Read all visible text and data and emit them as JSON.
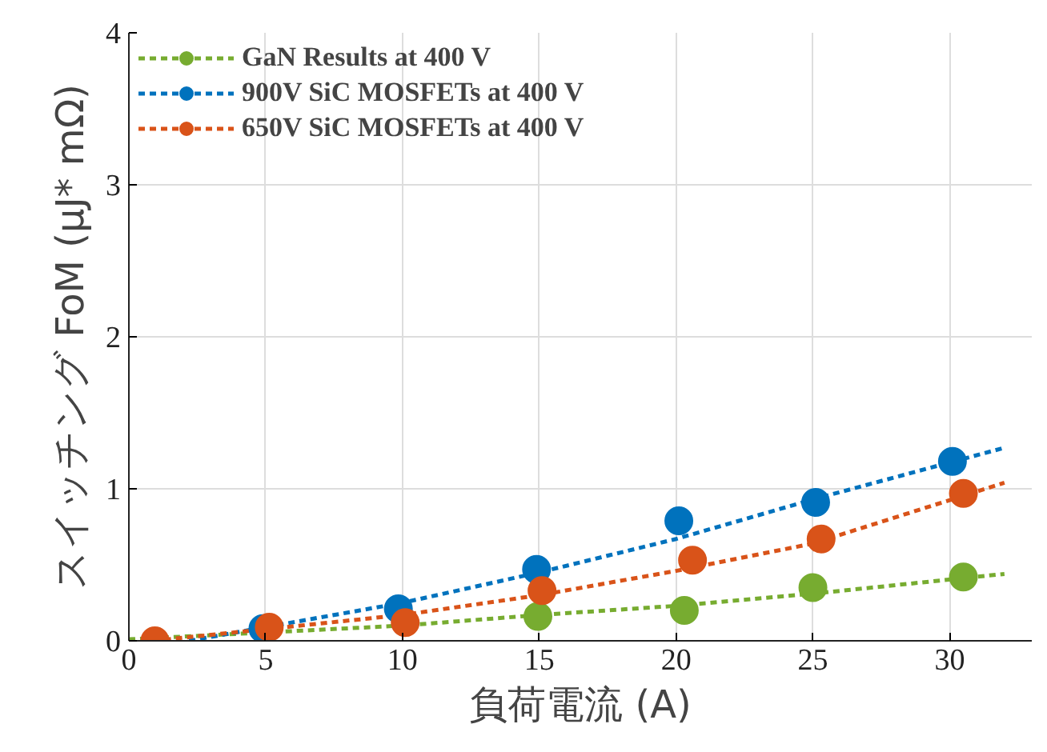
{
  "chart_data": {
    "type": "scatter",
    "xlabel": "負荷電流 (A)",
    "ylabel": "スイッチング FoM (μJ* mΩ)",
    "xlim": [
      0,
      33
    ],
    "xticks": [
      0,
      5,
      10,
      15,
      20,
      25,
      30
    ],
    "ylim": [
      0,
      4
    ],
    "yticks": [
      0,
      1,
      2,
      3,
      4
    ],
    "grid": true,
    "legend": "top left",
    "marker": "circle",
    "series": [
      {
        "name": "GaN Results at 400 V",
        "color": "#77ac30",
        "x": [
          14.95,
          20.3,
          25.0,
          30.5
        ],
        "values": [
          0.16,
          0.2,
          0.35,
          0.42
        ]
      },
      {
        "type": "line",
        "marker": "none",
        "line_style": "dashed",
        "color": "#77ac30",
        "x": [
          0,
          10,
          15,
          20,
          25,
          32
        ],
        "values": [
          0.01,
          0.1,
          0.17,
          0.23,
          0.31,
          0.44
        ]
      },
      {
        "name": "900V SiC MOSFETs at 400 V",
        "color": "#0072bd",
        "x": [
          4.9,
          9.85,
          14.9,
          20.1,
          25.1,
          30.1
        ],
        "values": [
          0.08,
          0.21,
          0.47,
          0.79,
          0.91,
          1.18
        ]
      },
      {
        "type": "line",
        "marker": "none",
        "line_style": "dashed",
        "color": "#0072bd",
        "x": [
          2.2,
          10,
          15,
          20,
          25,
          32
        ],
        "values": [
          0,
          0.25,
          0.45,
          0.67,
          0.93,
          1.27
        ]
      },
      {
        "name": "650V SiC MOSFETs at 400 V",
        "color": "#d95319",
        "x": [
          0.95,
          5.13,
          10.1,
          15.1,
          20.6,
          25.3,
          30.5
        ],
        "values": [
          0,
          0.09,
          0.12,
          0.33,
          0.53,
          0.67,
          0.97
        ]
      },
      {
        "type": "line",
        "marker": "none",
        "line_style": "dashed",
        "color": "#d95319",
        "x": [
          0.9,
          10,
          15,
          20,
          25,
          32
        ],
        "values": [
          0,
          0.17,
          0.3,
          0.46,
          0.64,
          1.04
        ]
      }
    ]
  }
}
